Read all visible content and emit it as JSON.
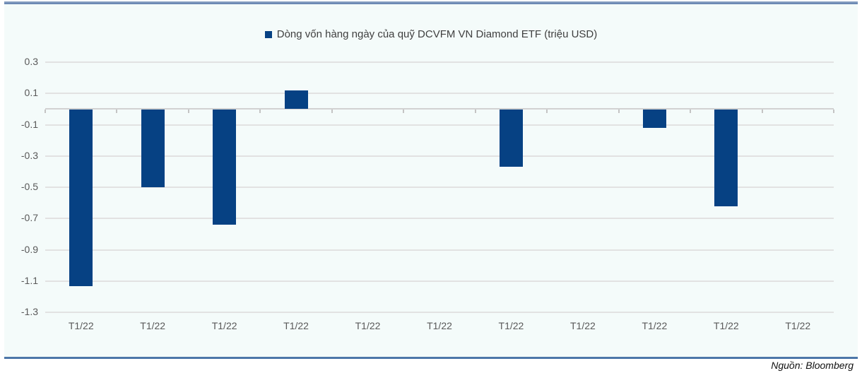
{
  "legend": {
    "label": "Dòng vốn hàng ngày của quỹ DCVFM VN Diamond ETF (triệu USD)",
    "marker_color": "#064183"
  },
  "source": {
    "label": "Nguồn: Bloomberg"
  },
  "colors": {
    "bar": "#064183",
    "panel_background": "#f4fbfa",
    "gridline": "#e2e2e2",
    "axis": "#d2d2d2",
    "tick_text": "#595959",
    "top_border": "#7189b2",
    "bottom_border": "#4d77a9"
  },
  "chart_data": {
    "type": "bar",
    "title": "Dòng vốn hàng ngày của quỹ DCVFM VN Diamond ETF (triệu USD)",
    "categories": [
      "T1/22",
      "T1/22",
      "T1/22",
      "T1/22",
      "T1/22",
      "T1/22",
      "T1/22",
      "T1/22",
      "T1/22",
      "T1/22",
      "T1/22"
    ],
    "values": [
      -1.13,
      -0.5,
      -0.74,
      0.12,
      0,
      0,
      -0.37,
      0,
      -0.12,
      -0.62,
      0
    ],
    "xlabel": "",
    "ylabel": "",
    "unit": "triệu USD",
    "ylim": [
      -1.3,
      0.3
    ],
    "yticks": [
      0.3,
      0.1,
      -0.1,
      -0.3,
      -0.5,
      -0.7,
      -0.9,
      -1.1,
      -1.3
    ],
    "grid": true,
    "legend_position": "top",
    "legend_entries": [
      "Dòng vốn hàng ngày của quỹ DCVFM VN Diamond ETF (triệu USD)"
    ],
    "source": "Nguồn: Bloomberg"
  }
}
